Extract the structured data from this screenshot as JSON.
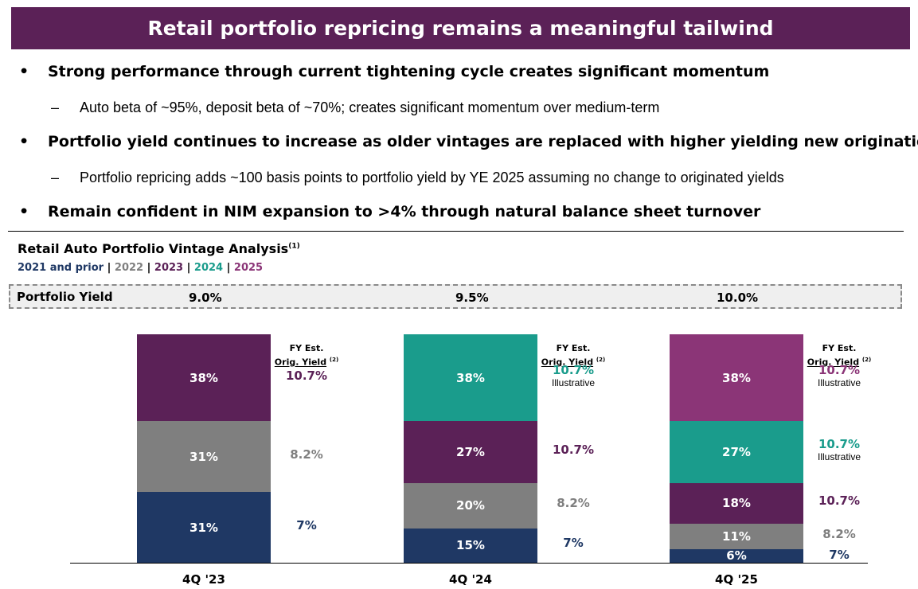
{
  "title": "Retail portfolio repricing remains a meaningful tailwind",
  "bullets": [
    {
      "mark": "•",
      "text": "Strong performance through current tightening cycle creates significant momentum"
    },
    {
      "mark": "–",
      "text": "Auto beta of ~95%, deposit beta of ~70%; creates significant momentum over medium-term"
    },
    {
      "mark": "•",
      "text": "Portfolio yield continues to increase as older vintages are replaced with higher yielding new originations"
    },
    {
      "mark": "–",
      "text": "Portfolio repricing adds ~100 basis points to portfolio yield by YE 2025 assuming no change to originated yields"
    },
    {
      "mark": "•",
      "text": "Remain confident in NIM expansion to >4% through natural balance sheet turnover"
    }
  ],
  "section": {
    "title": "Retail Auto Portfolio Vintage Analysis",
    "footnote": "(1)"
  },
  "legend": {
    "items": [
      {
        "label": "2021 and prior",
        "color": "#1f3864"
      },
      {
        "label": "2022",
        "color": "#7f7f7f"
      },
      {
        "label": "2023",
        "color": "#5b2157"
      },
      {
        "label": "2024",
        "color": "#1a9c8c"
      },
      {
        "label": "2025",
        "color": "#8b3577"
      }
    ],
    "separator": " | "
  },
  "portfolio_yield": {
    "label": "Portfolio Yield",
    "values": [
      "9.0%",
      "9.5%",
      "10.0%"
    ]
  },
  "fy_header": {
    "line1": "FY  Est.",
    "line2": "Orig. Yield",
    "footnote": "(2)"
  },
  "colors": {
    "2021 and prior": "#1f3864",
    "2022": "#7f7f7f",
    "2023": "#5b2157",
    "2024": "#1a9c8c",
    "2025": "#8b3577",
    "banner": "#5b2157"
  },
  "chart_data": {
    "type": "bar",
    "stacked": true,
    "categories": [
      "4Q '23",
      "4Q '24",
      "4Q '25"
    ],
    "series": [
      {
        "name": "2021 and prior",
        "values": [
          31,
          15,
          6
        ],
        "labels": [
          "31%",
          "15%",
          "6%"
        ]
      },
      {
        "name": "2022",
        "values": [
          31,
          20,
          11
        ],
        "labels": [
          "31%",
          "20%",
          "11%"
        ]
      },
      {
        "name": "2023",
        "values": [
          38,
          27,
          18
        ],
        "labels": [
          "38%",
          "27%",
          "18%"
        ]
      },
      {
        "name": "2024",
        "values": [
          0,
          38,
          27
        ],
        "labels": [
          "",
          "38%",
          "27%"
        ]
      },
      {
        "name": "2025",
        "values": [
          0,
          0,
          38
        ],
        "labels": [
          "",
          "",
          "38%"
        ]
      }
    ],
    "orig_yields": [
      [
        {
          "text": "7%",
          "series": "2021 and prior"
        },
        {
          "text": "8.2%",
          "series": "2022"
        },
        {
          "text": "10.7%",
          "series": "2023"
        }
      ],
      [
        {
          "text": "7%",
          "series": "2021 and prior"
        },
        {
          "text": "8.2%",
          "series": "2022"
        },
        {
          "text": "10.7%",
          "series": "2023"
        },
        {
          "text": "10.7%",
          "series": "2024",
          "note": "Illustrative"
        }
      ],
      [
        {
          "text": "7%",
          "series": "2021 and prior"
        },
        {
          "text": "8.2%",
          "series": "2022"
        },
        {
          "text": "10.7%",
          "series": "2023"
        },
        {
          "text": "10.7%",
          "series": "2024",
          "note": "Illustrative"
        },
        {
          "text": "10.7%",
          "series": "2025",
          "note": "Illustrative"
        }
      ]
    ],
    "ylim": [
      0,
      100
    ]
  }
}
